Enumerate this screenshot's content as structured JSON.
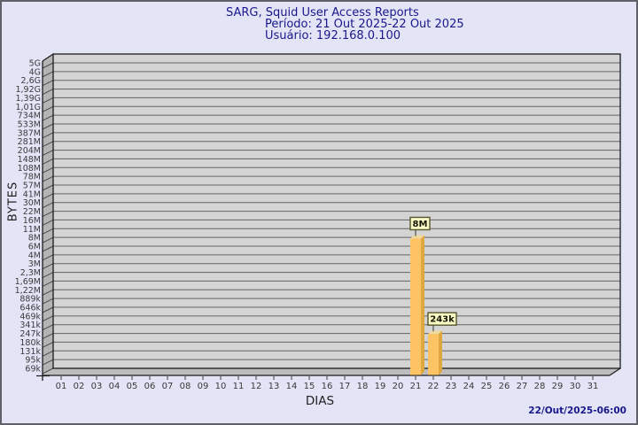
{
  "page": {
    "background": "#e4e4f7",
    "border_color": "#60606a"
  },
  "header": {
    "title": "SARG, Squid User Access Reports",
    "period": "Período: 21 Out 2025-22 Out 2025",
    "user": "Usuário: 192.168.0.100",
    "text_color": "#18188c"
  },
  "footer": {
    "timestamp": "22/Out/2025-06:00"
  },
  "chart_data": {
    "type": "bar",
    "title": "SARG, Squid User Access Reports",
    "subtitle": "Período: 21 Out 2025-22 Out 2025",
    "user_line": "Usuário: 192.168.0.100",
    "xlabel": "DIAS",
    "ylabel": "BYTES",
    "x_tick_labels": [
      "01",
      "02",
      "03",
      "04",
      "05",
      "06",
      "07",
      "08",
      "09",
      "10",
      "11",
      "12",
      "13",
      "14",
      "15",
      "16",
      "17",
      "18",
      "19",
      "20",
      "21",
      "22",
      "23",
      "24",
      "25",
      "26",
      "27",
      "28",
      "29",
      "30",
      "31"
    ],
    "y_tick_labels": [
      "5G",
      "4G",
      "2,6G",
      "1,92G",
      "1,39G",
      "1,01G",
      "734M",
      "533M",
      "387M",
      "281M",
      "204M",
      "148M",
      "108M",
      "78M",
      "57M",
      "41M",
      "30M",
      "22M",
      "16M",
      "11M",
      "8M",
      "6M",
      "4M",
      "3M",
      "2,3M",
      "1,69M",
      "1,22M",
      "889k",
      "646k",
      "469k",
      "341k",
      "247k",
      "180k",
      "131k",
      "95k",
      "69k"
    ],
    "y_axis": {
      "scale": "log",
      "min_bytes": 69000,
      "max_bytes": 5000000000
    },
    "bars": [
      {
        "day": "21",
        "value_label": "8M",
        "value_bytes": 8000000
      },
      {
        "day": "22",
        "value_label": "243k",
        "value_bytes": 243000
      }
    ],
    "colors": {
      "plot_bg": "#d4d4d4",
      "wall": "#b4b4b4",
      "floor": "#bdbdbd",
      "gridline": "#636363",
      "outline": "#1c1c1c",
      "bar_front": "#fdc365",
      "bar_side": "#dda840",
      "bar_top": "#efd9a0",
      "value_box_bg": "#fbfbc6",
      "value_box_border": "#55552e",
      "tick_text": "#3a3a3a"
    }
  }
}
